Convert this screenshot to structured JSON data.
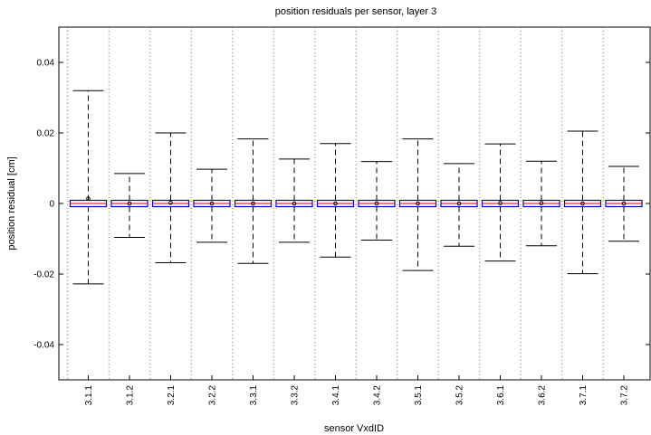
{
  "chart_data": {
    "type": "box",
    "title": "position residuals per sensor, layer 3",
    "xlabel": "sensor VxdID",
    "ylabel": "position residual [cm]",
    "ylim": [
      -0.05,
      0.05
    ],
    "yticks": [
      {
        "value": 0.04,
        "label": "0.04"
      },
      {
        "value": 0.02,
        "label": "0.02"
      },
      {
        "value": 0,
        "label": "0"
      },
      {
        "value": -0.02,
        "label": "-0.02"
      },
      {
        "value": -0.04,
        "label": "-0.04"
      }
    ],
    "categories": [
      "3.1.1",
      "3.1.2",
      "3.2.1",
      "3.2.2",
      "3.3.1",
      "3.3.2",
      "3.4.1",
      "3.4.2",
      "3.5.1",
      "3.5.2",
      "3.6.1",
      "3.6.2",
      "3.7.1",
      "3.7.2"
    ],
    "boxes": [
      {
        "whisker_low": -0.0228,
        "q1": -0.0009,
        "median": 0,
        "q3": 0.0009,
        "whisker_high": 0.032,
        "mean": 0.0014
      },
      {
        "whisker_low": -0.0096,
        "q1": -0.0009,
        "median": 0,
        "q3": 0.0009,
        "whisker_high": 0.0085,
        "mean": 0
      },
      {
        "whisker_low": -0.0168,
        "q1": -0.0009,
        "median": 0,
        "q3": 0.0009,
        "whisker_high": 0.02,
        "mean": 0.0002
      },
      {
        "whisker_low": -0.011,
        "q1": -0.0009,
        "median": 0,
        "q3": 0.0009,
        "whisker_high": 0.0097,
        "mean": 0
      },
      {
        "whisker_low": -0.017,
        "q1": -0.0009,
        "median": 0,
        "q3": 0.0009,
        "whisker_high": 0.0183,
        "mean": 0
      },
      {
        "whisker_low": -0.011,
        "q1": -0.0009,
        "median": 0,
        "q3": 0.0009,
        "whisker_high": 0.0126,
        "mean": 0
      },
      {
        "whisker_low": -0.0152,
        "q1": -0.0009,
        "median": 0,
        "q3": 0.0009,
        "whisker_high": 0.017,
        "mean": 0
      },
      {
        "whisker_low": -0.0104,
        "q1": -0.0009,
        "median": 0,
        "q3": 0.0009,
        "whisker_high": 0.0119,
        "mean": 0
      },
      {
        "whisker_low": -0.019,
        "q1": -0.0009,
        "median": 0,
        "q3": 0.0009,
        "whisker_high": 0.0183,
        "mean": 0
      },
      {
        "whisker_low": -0.0121,
        "q1": -0.0009,
        "median": 0,
        "q3": 0.0009,
        "whisker_high": 0.0113,
        "mean": 0
      },
      {
        "whisker_low": -0.0163,
        "q1": -0.0009,
        "median": 0,
        "q3": 0.0009,
        "whisker_high": 0.0169,
        "mean": 0.0001
      },
      {
        "whisker_low": -0.012,
        "q1": -0.0009,
        "median": 0,
        "q3": 0.0009,
        "whisker_high": 0.012,
        "mean": 0.0001
      },
      {
        "whisker_low": -0.0199,
        "q1": -0.0009,
        "median": 0,
        "q3": 0.0009,
        "whisker_high": 0.0205,
        "mean": 0
      },
      {
        "whisker_low": -0.0107,
        "q1": -0.0009,
        "median": 0,
        "q3": 0.0009,
        "whisker_high": 0.0105,
        "mean": 0
      }
    ],
    "grid": {
      "x": "dotted",
      "y": "none"
    },
    "colors": {
      "box_outline": "#0000cc",
      "median": "#cc0000",
      "whisker": "#000000",
      "mean_marker": "#000000"
    }
  }
}
